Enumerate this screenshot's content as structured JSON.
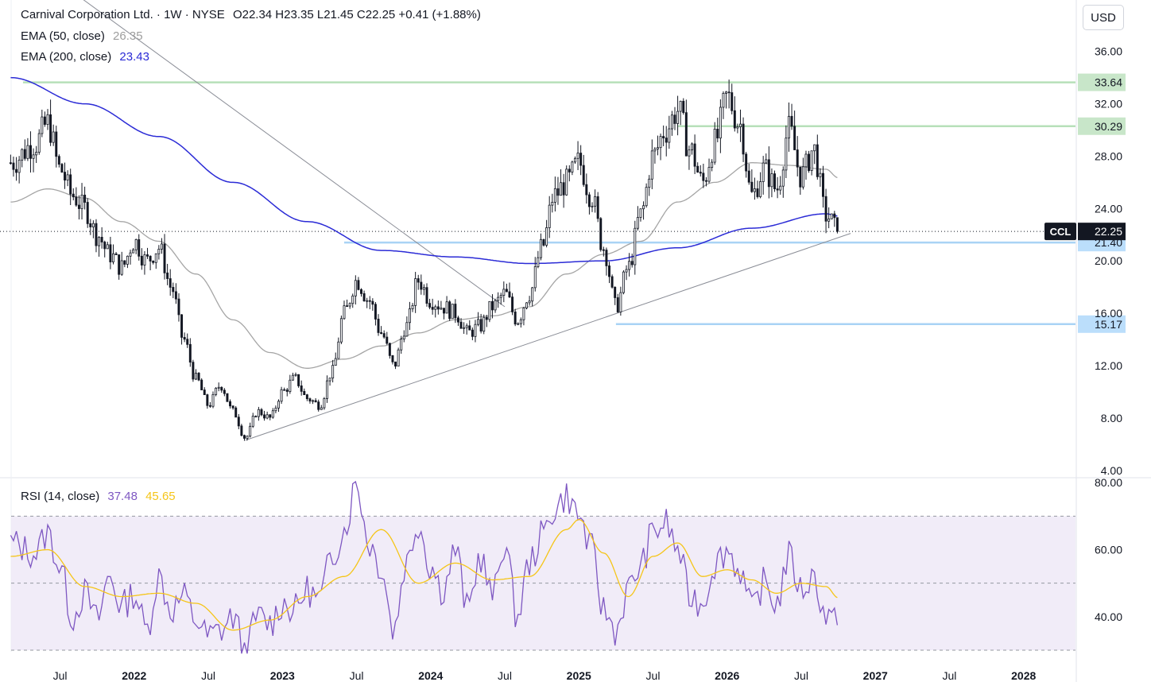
{
  "header": {
    "title": "Carnival Corporation Ltd. · 1W · NYSE",
    "ohlc": "O22.34  H23.35  L21.45  C22.25  +0.41 (+1.88%)",
    "currency": "USD"
  },
  "indicators": {
    "ema50": {
      "label": "EMA (50, close)",
      "value": "26.35",
      "color": "#9e9e9e"
    },
    "ema200": {
      "label": "EMA (200, close)",
      "value": "23.43",
      "color": "#2b2bd6"
    },
    "rsi": {
      "label": "RSI (14, close)",
      "value": "37.48",
      "ma_value": "45.65",
      "color": "#7e57c2",
      "ma_color": "#f5c518"
    }
  },
  "chart_data": [
    {
      "type": "candlestick",
      "interval": "1W",
      "ticker": "CCL",
      "title": "Carnival Corporation Ltd. · 1W · NYSE",
      "ylim": [
        3.5,
        37.5
      ],
      "y_ticks": [
        4,
        8,
        12,
        16,
        20,
        24,
        28,
        32,
        36
      ],
      "y_tick_labels": [
        "4.00",
        "8.00",
        "12.00",
        "16.00",
        "20.00",
        "24.00",
        "28.00",
        "32.00",
        "36.00"
      ],
      "x_ticks": [
        {
          "date": "2021-07",
          "label": "Jul"
        },
        {
          "date": "2022-01",
          "label": "2022"
        },
        {
          "date": "2022-07",
          "label": "Jul"
        },
        {
          "date": "2023-01",
          "label": "2023"
        },
        {
          "date": "2023-07",
          "label": "Jul"
        },
        {
          "date": "2024-01",
          "label": "2024"
        },
        {
          "date": "2024-07",
          "label": "Jul"
        },
        {
          "date": "2025-01",
          "label": "2025"
        },
        {
          "date": "2025-07",
          "label": "Jul"
        },
        {
          "date": "2026-01",
          "label": "2026"
        },
        {
          "date": "2026-07",
          "label": "Jul"
        },
        {
          "date": "2027-01",
          "label": "2027"
        },
        {
          "date": "2027-07",
          "label": "Jul"
        },
        {
          "date": "2028-01",
          "label": "2028"
        }
      ],
      "last_price": {
        "label": "CCL",
        "value": 22.25
      },
      "price_path": [
        [
          "2021-03",
          27.5
        ],
        [
          "2021-05",
          29.0
        ],
        [
          "2021-06",
          30.5
        ],
        [
          "2021-07",
          27.0
        ],
        [
          "2021-08",
          25.0
        ],
        [
          "2021-09",
          24.0
        ],
        [
          "2021-10",
          22.0
        ],
        [
          "2021-11",
          20.5
        ],
        [
          "2021-12",
          19.5
        ],
        [
          "2022-01",
          21.5
        ],
        [
          "2022-02",
          20.0
        ],
        [
          "2022-03",
          21.0
        ],
        [
          "2022-04",
          18.0
        ],
        [
          "2022-05",
          14.0
        ],
        [
          "2022-06",
          11.0
        ],
        [
          "2022-07",
          9.0
        ],
        [
          "2022-08",
          10.5
        ],
        [
          "2022-09",
          8.5
        ],
        [
          "2022-10",
          6.5
        ],
        [
          "2022-11",
          8.5
        ],
        [
          "2022-12",
          8.0
        ],
        [
          "2023-01",
          10.0
        ],
        [
          "2023-02",
          11.0
        ],
        [
          "2023-03",
          9.5
        ],
        [
          "2023-04",
          9.0
        ],
        [
          "2023-05",
          11.5
        ],
        [
          "2023-06",
          16.0
        ],
        [
          "2023-07",
          18.5
        ],
        [
          "2023-08",
          17.0
        ],
        [
          "2023-09",
          14.5
        ],
        [
          "2023-10",
          12.0
        ],
        [
          "2023-11",
          15.0
        ],
        [
          "2023-12",
          18.5
        ],
        [
          "2024-01",
          17.0
        ],
        [
          "2024-02",
          16.5
        ],
        [
          "2024-03",
          16.0
        ],
        [
          "2024-04",
          14.5
        ],
        [
          "2024-05",
          15.0
        ],
        [
          "2024-06",
          16.5
        ],
        [
          "2024-07",
          17.5
        ],
        [
          "2024-08",
          15.5
        ],
        [
          "2024-09",
          17.5
        ],
        [
          "2024-10",
          21.0
        ],
        [
          "2024-11",
          25.0
        ],
        [
          "2024-12",
          26.0
        ],
        [
          "2025-01",
          27.5
        ],
        [
          "2025-02",
          25.0
        ],
        [
          "2025-03",
          21.0
        ],
        [
          "2025-04",
          16.5
        ],
        [
          "2025-05",
          19.5
        ],
        [
          "2025-06",
          23.5
        ],
        [
          "2025-07",
          28.0
        ],
        [
          "2025-08",
          30.0
        ],
        [
          "2025-09",
          31.5
        ],
        [
          "2025-10",
          28.5
        ],
        [
          "2025-11",
          26.0
        ],
        [
          "2025-12",
          29.0
        ],
        [
          "2026-01",
          32.5
        ],
        [
          "2026-02",
          30.5
        ],
        [
          "2026-03",
          25.0
        ],
        [
          "2026-04",
          27.0
        ],
        [
          "2026-05",
          25.5
        ],
        [
          "2026-06",
          30.0
        ],
        [
          "2026-07",
          26.5
        ],
        [
          "2026-08",
          28.5
        ],
        [
          "2026-09",
          23.5
        ],
        [
          "2026-10",
          22.25
        ]
      ],
      "ema50_path": [
        [
          "2021-03",
          24.5
        ],
        [
          "2021-06",
          25.5
        ],
        [
          "2021-09",
          24.8
        ],
        [
          "2021-12",
          23.0
        ],
        [
          "2022-03",
          21.5
        ],
        [
          "2022-06",
          19.0
        ],
        [
          "2022-09",
          15.5
        ],
        [
          "2022-12",
          13.0
        ],
        [
          "2023-03",
          11.8
        ],
        [
          "2023-06",
          12.5
        ],
        [
          "2023-09",
          13.5
        ],
        [
          "2023-12",
          14.5
        ],
        [
          "2024-03",
          15.5
        ],
        [
          "2024-06",
          15.8
        ],
        [
          "2024-09",
          16.5
        ],
        [
          "2024-12",
          19.0
        ],
        [
          "2025-03",
          20.5
        ],
        [
          "2025-06",
          21.5
        ],
        [
          "2025-09",
          24.5
        ],
        [
          "2025-12",
          26.0
        ],
        [
          "2026-03",
          27.5
        ],
        [
          "2026-06",
          27.3
        ],
        [
          "2026-09",
          27.0
        ],
        [
          "2026-10",
          26.35
        ]
      ],
      "ema200_path": [
        [
          "2021-03",
          34.0
        ],
        [
          "2021-09",
          32.0
        ],
        [
          "2022-03",
          29.5
        ],
        [
          "2022-09",
          26.0
        ],
        [
          "2023-03",
          23.0
        ],
        [
          "2023-09",
          20.8
        ],
        [
          "2024-03",
          20.3
        ],
        [
          "2024-09",
          19.8
        ],
        [
          "2025-03",
          20.0
        ],
        [
          "2025-09",
          21.0
        ],
        [
          "2026-03",
          22.5
        ],
        [
          "2026-09",
          23.6
        ],
        [
          "2026-10",
          23.43
        ]
      ],
      "price_levels": [
        {
          "value": 33.64,
          "label": "33.64",
          "color": "#4caf50",
          "from": "2021-04"
        },
        {
          "value": 30.29,
          "label": "30.29",
          "color": "#4caf50",
          "from": "2025-09"
        },
        {
          "value": 21.4,
          "label": "21.40",
          "color": "#2196f3",
          "from": "2023-06"
        },
        {
          "value": 15.17,
          "label": "15.17",
          "color": "#2196f3",
          "from": "2025-04"
        }
      ],
      "trendlines": [
        {
          "start": [
            "2022-10",
            6.3
          ],
          "end": [
            "2026-11",
            22.1
          ]
        },
        {
          "start": [
            "2021-03",
            44.0
          ],
          "end": [
            "2024-07",
            16.5
          ]
        }
      ]
    },
    {
      "type": "line",
      "title": "RSI (14, close)",
      "ylim": [
        30,
        81
      ],
      "y_ticks": [
        40,
        60,
        80
      ],
      "y_tick_labels": [
        "40.00",
        "60.00",
        "80.00"
      ],
      "band": [
        30,
        70
      ],
      "midline": 50,
      "series": [
        {
          "name": "RSI",
          "values": [
            [
              "2021-03",
              62
            ],
            [
              "2021-05",
              59
            ],
            [
              "2021-06",
              65
            ],
            [
              "2021-07",
              55
            ],
            [
              "2021-08",
              40
            ],
            [
              "2021-09",
              47
            ],
            [
              "2021-10",
              39
            ],
            [
              "2021-11",
              52
            ],
            [
              "2021-12",
              43
            ],
            [
              "2022-01",
              47
            ],
            [
              "2022-02",
              36
            ],
            [
              "2022-03",
              52
            ],
            [
              "2022-04",
              42
            ],
            [
              "2022-05",
              46
            ],
            [
              "2022-06",
              39
            ],
            [
              "2022-07",
              34
            ],
            [
              "2022-08",
              36
            ],
            [
              "2022-09",
              40
            ],
            [
              "2022-10",
              30
            ],
            [
              "2022-11",
              40
            ],
            [
              "2022-12",
              38
            ],
            [
              "2023-01",
              44
            ],
            [
              "2023-02",
              42
            ],
            [
              "2023-03",
              48
            ],
            [
              "2023-04",
              45
            ],
            [
              "2023-05",
              58
            ],
            [
              "2023-06",
              66
            ],
            [
              "2023-07",
              80
            ],
            [
              "2023-08",
              62
            ],
            [
              "2023-09",
              55
            ],
            [
              "2023-10",
              36
            ],
            [
              "2023-11",
              56
            ],
            [
              "2023-12",
              68
            ],
            [
              "2024-01",
              55
            ],
            [
              "2024-02",
              48
            ],
            [
              "2024-03",
              60
            ],
            [
              "2024-04",
              42
            ],
            [
              "2024-05",
              58
            ],
            [
              "2024-06",
              46
            ],
            [
              "2024-07",
              62
            ],
            [
              "2024-08",
              40
            ],
            [
              "2024-09",
              56
            ],
            [
              "2024-10",
              64
            ],
            [
              "2024-11",
              72
            ],
            [
              "2024-12",
              76
            ],
            [
              "2025-01",
              70
            ],
            [
              "2025-02",
              60
            ],
            [
              "2025-03",
              42
            ],
            [
              "2025-04",
              36
            ],
            [
              "2025-05",
              48
            ],
            [
              "2025-06",
              55
            ],
            [
              "2025-07",
              65
            ],
            [
              "2025-08",
              68
            ],
            [
              "2025-09",
              60
            ],
            [
              "2025-10",
              46
            ],
            [
              "2025-11",
              44
            ],
            [
              "2025-12",
              56
            ],
            [
              "2026-01",
              60
            ],
            [
              "2026-02",
              54
            ],
            [
              "2026-03",
              42
            ],
            [
              "2026-04",
              50
            ],
            [
              "2026-05",
              44
            ],
            [
              "2026-06",
              58
            ],
            [
              "2026-07",
              48
            ],
            [
              "2026-08",
              52
            ],
            [
              "2026-09",
              40
            ],
            [
              "2026-10",
              37.48
            ]
          ]
        },
        {
          "name": "RSI-based MA",
          "values": [
            [
              "2021-03",
              58
            ],
            [
              "2021-06",
              60
            ],
            [
              "2021-09",
              49
            ],
            [
              "2021-12",
              46
            ],
            [
              "2022-03",
              47
            ],
            [
              "2022-06",
              44
            ],
            [
              "2022-09",
              36
            ],
            [
              "2022-12",
              39
            ],
            [
              "2023-03",
              46
            ],
            [
              "2023-06",
              52
            ],
            [
              "2023-09",
              66
            ],
            [
              "2023-12",
              50
            ],
            [
              "2024-03",
              56
            ],
            [
              "2024-06",
              51
            ],
            [
              "2024-09",
              52
            ],
            [
              "2024-12",
              66
            ],
            [
              "2025-01",
              69
            ],
            [
              "2025-03",
              59
            ],
            [
              "2025-05",
              46
            ],
            [
              "2025-07",
              58
            ],
            [
              "2025-09",
              62
            ],
            [
              "2025-11",
              52
            ],
            [
              "2026-01",
              54
            ],
            [
              "2026-03",
              51
            ],
            [
              "2026-05",
              47
            ],
            [
              "2026-07",
              50
            ],
            [
              "2026-09",
              49
            ],
            [
              "2026-10",
              45.65
            ]
          ]
        }
      ]
    }
  ]
}
